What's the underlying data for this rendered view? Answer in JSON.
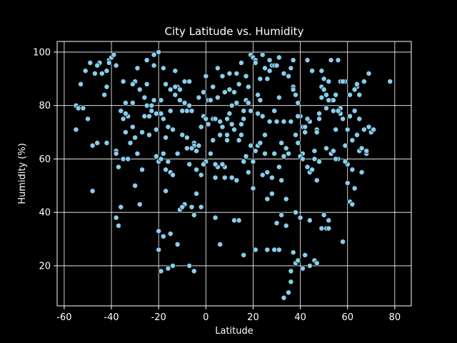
{
  "chart_data": {
    "type": "scatter",
    "title": "City Latitude vs. Humidity",
    "xlabel": "Latitude",
    "ylabel": "Humidity (%)",
    "xlim": [
      -63,
      87
    ],
    "ylim": [
      5,
      104
    ],
    "xticks": [
      -60,
      -40,
      -20,
      0,
      20,
      40,
      60,
      80
    ],
    "yticks": [
      20,
      40,
      60,
      80,
      100
    ],
    "grid": true,
    "background": "#000000",
    "foreground": "#ffffff",
    "marker_color": "#87ceeb",
    "marker_edge": "#000000",
    "x": [
      -55,
      -54,
      -53,
      -51,
      -50,
      -48,
      -47,
      -46,
      -45,
      -43,
      -42,
      -42,
      -41,
      -40,
      -39,
      -38,
      -38,
      -37,
      -36,
      -35,
      -35,
      -34,
      -33,
      -32,
      -31,
      -30,
      -29,
      -28,
      -27,
      -26,
      -25,
      -24,
      -23,
      -22,
      -21,
      -20,
      -19,
      -18,
      -17,
      -16,
      -15,
      -14,
      -13,
      -12,
      -11,
      -10,
      -9,
      -8,
      -7,
      -6,
      -5,
      -4,
      -3,
      -2,
      -1,
      0,
      1,
      2,
      3,
      4,
      5,
      6,
      7,
      8,
      9,
      10,
      11,
      12,
      13,
      14,
      15,
      16,
      17,
      18,
      19,
      20,
      21,
      22,
      23,
      24,
      25,
      26,
      27,
      28,
      29,
      30,
      31,
      32,
      33,
      34,
      35,
      36,
      37,
      38,
      39,
      40,
      41,
      42,
      43,
      44,
      45,
      46,
      47,
      48,
      49,
      50,
      51,
      52,
      53,
      54,
      55,
      56,
      57,
      58,
      59,
      60,
      61,
      62,
      63,
      64,
      65,
      66,
      67,
      68,
      69,
      70,
      71,
      78,
      -55,
      -52,
      -49,
      -46,
      -44,
      -41,
      -38,
      -36,
      -34,
      -31,
      -28,
      -25,
      -23,
      -21,
      -19,
      -17,
      -15,
      -13,
      -11,
      -9,
      -7,
      -5,
      -3,
      -1,
      1,
      3,
      5,
      7,
      9,
      11,
      13,
      15,
      17,
      19,
      21,
      23,
      25,
      27,
      29,
      31,
      33,
      35,
      37,
      39,
      41,
      43,
      45,
      47,
      49,
      51,
      53,
      55,
      57,
      59,
      61,
      63,
      65,
      67,
      69,
      -48,
      -42,
      -38,
      -34,
      -30,
      -26,
      -22,
      -20,
      -18,
      -16,
      -14,
      -12,
      -10,
      -8,
      -6,
      -4,
      -2,
      0,
      2,
      4,
      6,
      8,
      10,
      12,
      14,
      16,
      18,
      20,
      22,
      24,
      26,
      28,
      30,
      32,
      34,
      36,
      38,
      40,
      42,
      44,
      46,
      48,
      50,
      52,
      54,
      56,
      58,
      60,
      62,
      64,
      66,
      68,
      -37,
      -33,
      -29,
      -25,
      -21,
      -19,
      -17,
      -15,
      -13,
      -11,
      -9,
      -7,
      -5,
      -3,
      -1,
      1,
      3,
      5,
      7,
      9,
      11,
      13,
      15,
      17,
      19,
      21,
      23,
      25,
      27,
      29,
      31,
      33,
      35,
      37,
      39,
      41,
      43,
      45,
      47,
      49,
      51,
      53,
      55,
      57,
      59,
      61,
      63,
      65,
      -35,
      -30,
      -27,
      -24,
      -20,
      -18,
      -16,
      -12,
      -8,
      -4,
      0,
      4,
      8,
      12,
      16,
      20,
      24,
      28,
      32,
      36,
      40,
      44,
      48,
      52,
      56,
      60,
      64,
      -31,
      -22,
      -19,
      -15,
      -6,
      -2,
      2,
      6,
      10,
      14,
      18,
      22,
      26,
      30,
      34,
      38,
      42,
      46,
      50,
      54,
      58,
      62,
      -20,
      -18,
      -17,
      -14,
      -10,
      -7,
      -5,
      4,
      16,
      21,
      26,
      29,
      31,
      33,
      35,
      36,
      37,
      38,
      39,
      41,
      44,
      47,
      49,
      50,
      51,
      52
    ],
    "y": [
      80,
      79,
      88,
      93,
      75,
      48,
      92,
      66,
      96,
      84,
      87,
      93,
      97,
      98,
      99,
      63,
      38,
      35,
      42,
      60,
      89,
      81,
      76,
      66,
      72,
      89,
      62,
      86,
      70,
      83,
      88,
      69,
      78,
      99,
      71,
      100,
      77,
      94,
      88,
      72,
      78,
      71,
      84,
      87,
      86,
      78,
      89,
      78,
      80,
      78,
      66,
      56,
      65,
      72,
      85,
      59,
      82,
      82,
      75,
      53,
      94,
      74,
      91,
      85,
      69,
      77,
      73,
      85,
      81,
      88,
      96,
      75,
      82,
      87,
      99,
      98,
      97,
      84,
      90,
      99,
      94,
      90,
      93,
      95,
      95,
      95,
      83,
      66,
      61,
      64,
      91,
      94,
      87,
      84,
      81,
      76,
      72,
      72,
      97,
      74,
      93,
      63,
      71,
      77,
      83,
      90,
      79,
      89,
      97,
      78,
      71,
      97,
      79,
      75,
      89,
      71,
      76,
      56,
      78,
      87,
      63,
      55,
      71,
      62,
      72,
      70,
      71,
      89,
      71,
      79,
      96,
      95,
      92,
      96,
      95,
      78,
      77,
      88,
      43,
      80,
      80,
      77,
      82,
      68,
      55,
      87,
      82,
      81,
      89,
      65,
      65,
      76,
      82,
      87,
      83,
      72,
      67,
      80,
      92,
      69,
      91,
      65,
      63,
      82,
      69,
      74,
      62,
      98,
      92,
      91,
      86,
      66,
      62,
      75,
      93,
      70,
      87,
      84,
      82,
      84,
      89,
      65,
      84,
      86,
      75,
      89,
      92,
      65,
      66,
      62,
      70,
      68,
      76,
      95,
      59,
      75,
      59,
      54,
      62,
      69,
      68,
      64,
      63,
      54,
      75,
      82,
      75,
      69,
      57,
      92,
      71,
      67,
      78,
      55,
      59,
      65,
      76,
      55,
      53,
      74,
      52,
      45,
      74,
      69,
      61,
      70,
      55,
      60,
      59,
      86,
      82,
      82,
      60,
      89,
      58,
      67,
      69,
      64,
      63,
      57,
      60,
      94,
      97,
      61,
      60,
      48,
      86,
      93,
      41,
      43,
      58,
      39,
      83,
      58,
      73,
      67,
      57,
      58,
      75,
      53,
      52,
      73,
      61,
      78,
      96,
      66,
      62,
      97,
      78,
      57,
      74,
      62,
      97,
      76,
      60,
      57,
      56,
      52,
      93,
      64,
      62,
      60,
      77,
      59,
      44,
      49,
      84,
      75,
      50,
      56,
      76,
      33,
      62,
      19,
      28,
      64,
      47,
      91,
      58,
      53,
      37,
      59,
      49,
      54,
      47,
      39,
      18,
      38,
      37,
      75,
      37,
      78,
      51,
      88,
      81,
      82,
      18,
      32,
      42,
      42,
      62,
      28,
      86,
      37,
      81,
      77,
      45,
      36,
      35,
      40,
      24,
      22,
      86,
      63,
      29,
      43,
      26,
      31,
      56,
      20,
      42,
      20,
      18,
      38,
      24,
      26,
      26,
      26,
      26,
      8,
      10,
      14,
      25,
      21,
      22,
      19,
      20,
      21,
      34,
      39,
      34,
      34
    ],
    "annotations": []
  }
}
